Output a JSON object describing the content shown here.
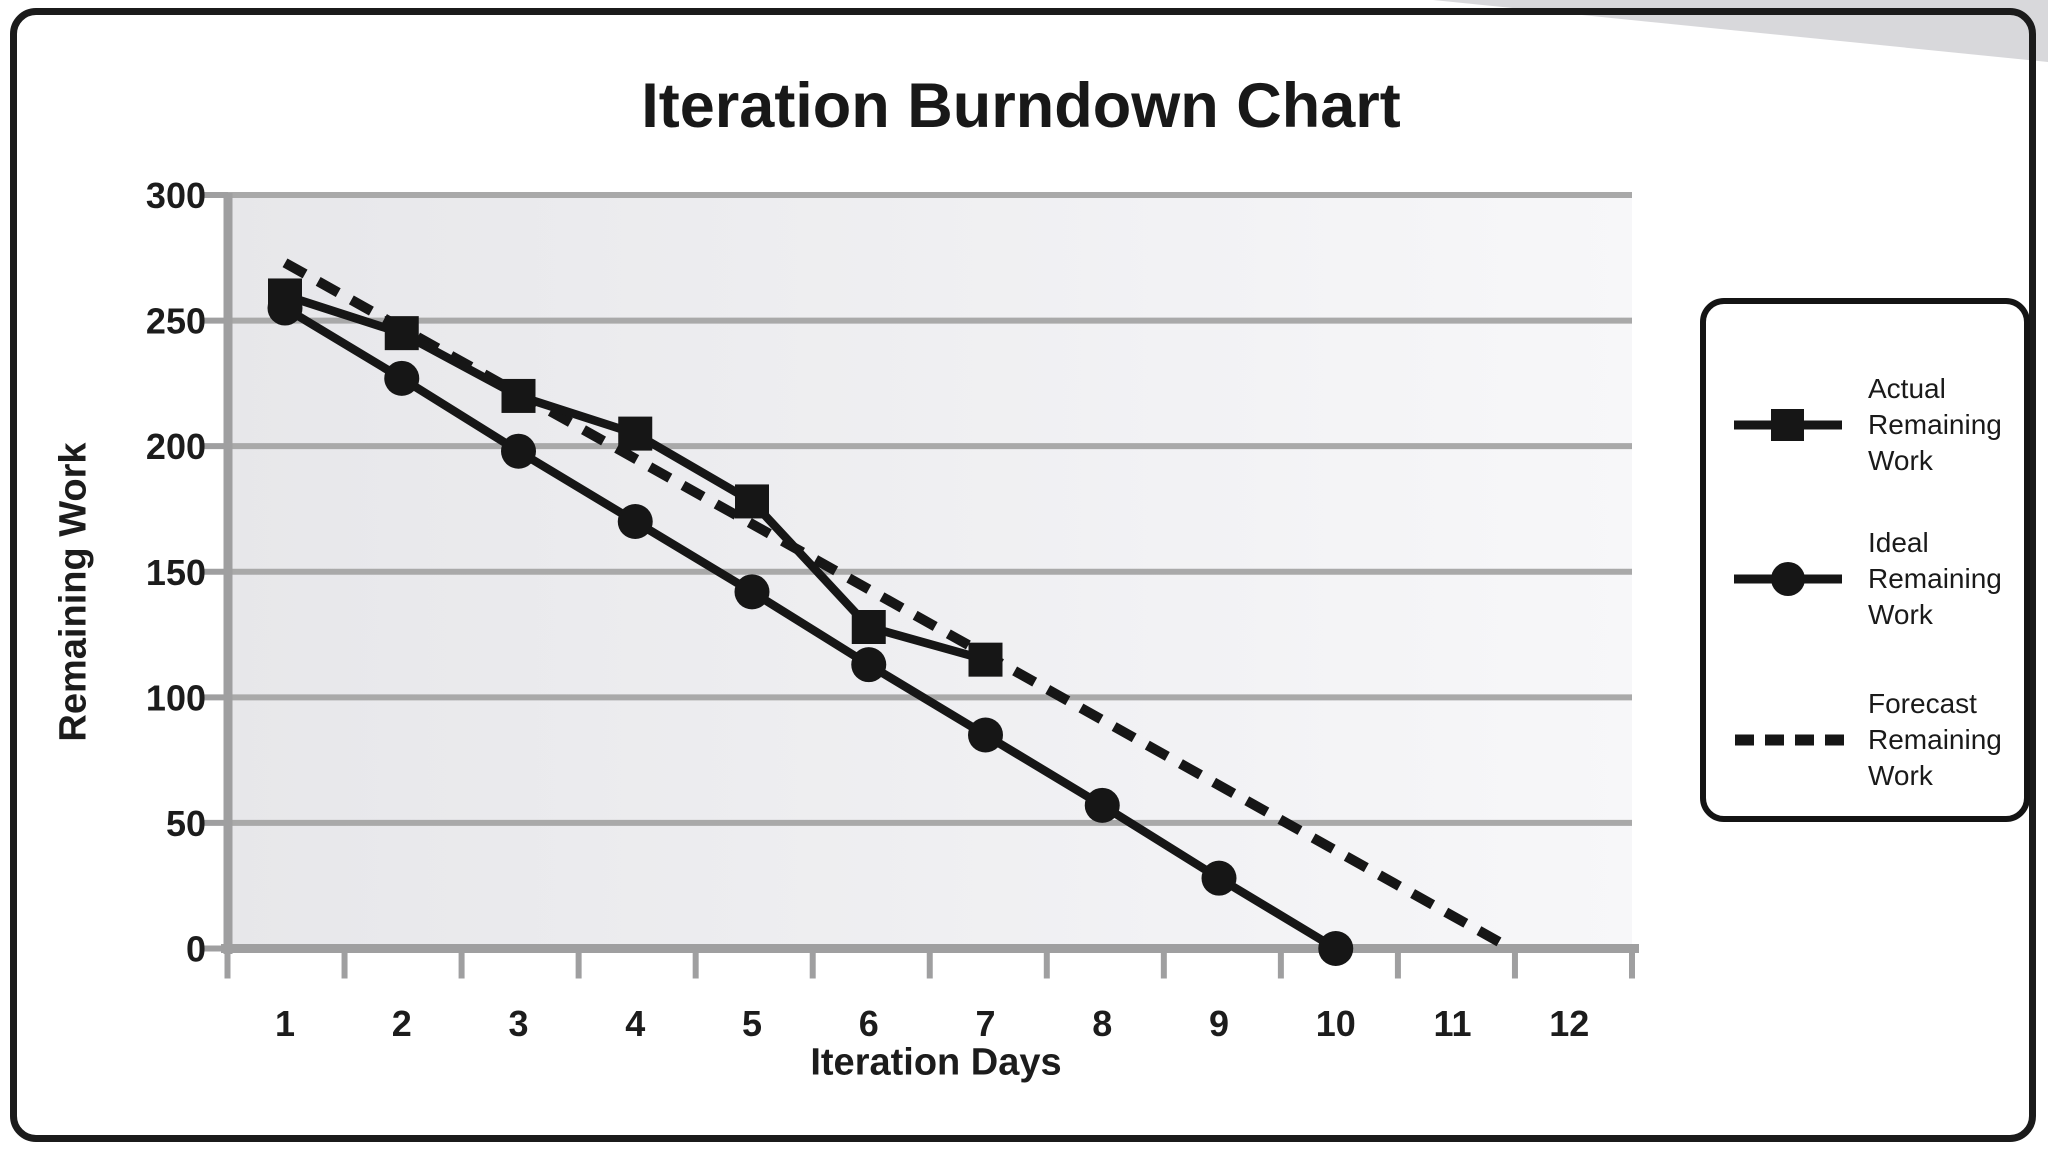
{
  "title": "Iteration Burndown Chart",
  "chart_data": {
    "type": "line",
    "title": "Iteration Burndown Chart",
    "xlabel": "Iteration Days",
    "ylabel": "Remaining Work",
    "x_ticks": [
      1,
      2,
      3,
      4,
      5,
      6,
      7,
      8,
      9,
      10,
      11,
      12
    ],
    "y_ticks": [
      300,
      250,
      200,
      150,
      100,
      50,
      0
    ],
    "ylim": [
      0,
      300
    ],
    "xlim": [
      0.5,
      12.5
    ],
    "grid": "horizontal",
    "legend_position": "right",
    "series": [
      {
        "name": "Actual Remaining Work",
        "marker": "square",
        "line": "solid",
        "x": [
          1,
          2,
          3,
          4,
          5,
          6,
          7
        ],
        "values": [
          260,
          245,
          220,
          205,
          178,
          128,
          115
        ]
      },
      {
        "name": "Ideal Remaining Work",
        "marker": "circle",
        "line": "solid",
        "x": [
          1,
          2,
          3,
          4,
          5,
          6,
          7,
          8,
          9,
          10
        ],
        "values": [
          255,
          227,
          198,
          170,
          142,
          113,
          85,
          57,
          28,
          0
        ]
      },
      {
        "name": "Forecast Remaining Work",
        "marker": "none",
        "line": "dashed",
        "x": [
          1,
          11.5
        ],
        "values": [
          273,
          0
        ]
      }
    ]
  },
  "legend": {
    "items": [
      {
        "label": "Actual Remaining Work",
        "symbol": "square-marker"
      },
      {
        "label": "Ideal Remaining Work",
        "symbol": "circle-marker"
      },
      {
        "label": "Forecast Remaining Work",
        "symbol": "dashed-line"
      }
    ]
  },
  "colors": {
    "series": "#161616",
    "grid": "#a9a9a9",
    "axis": "#9f9fa0",
    "text": "#1c1c1c",
    "plot_bg_left": "#e7e7ea",
    "plot_bg_right": "#f7f7f9",
    "page_bg": "#ffffff",
    "frame": "#1b1b1b",
    "corner_artifact": "#d8d8db"
  }
}
